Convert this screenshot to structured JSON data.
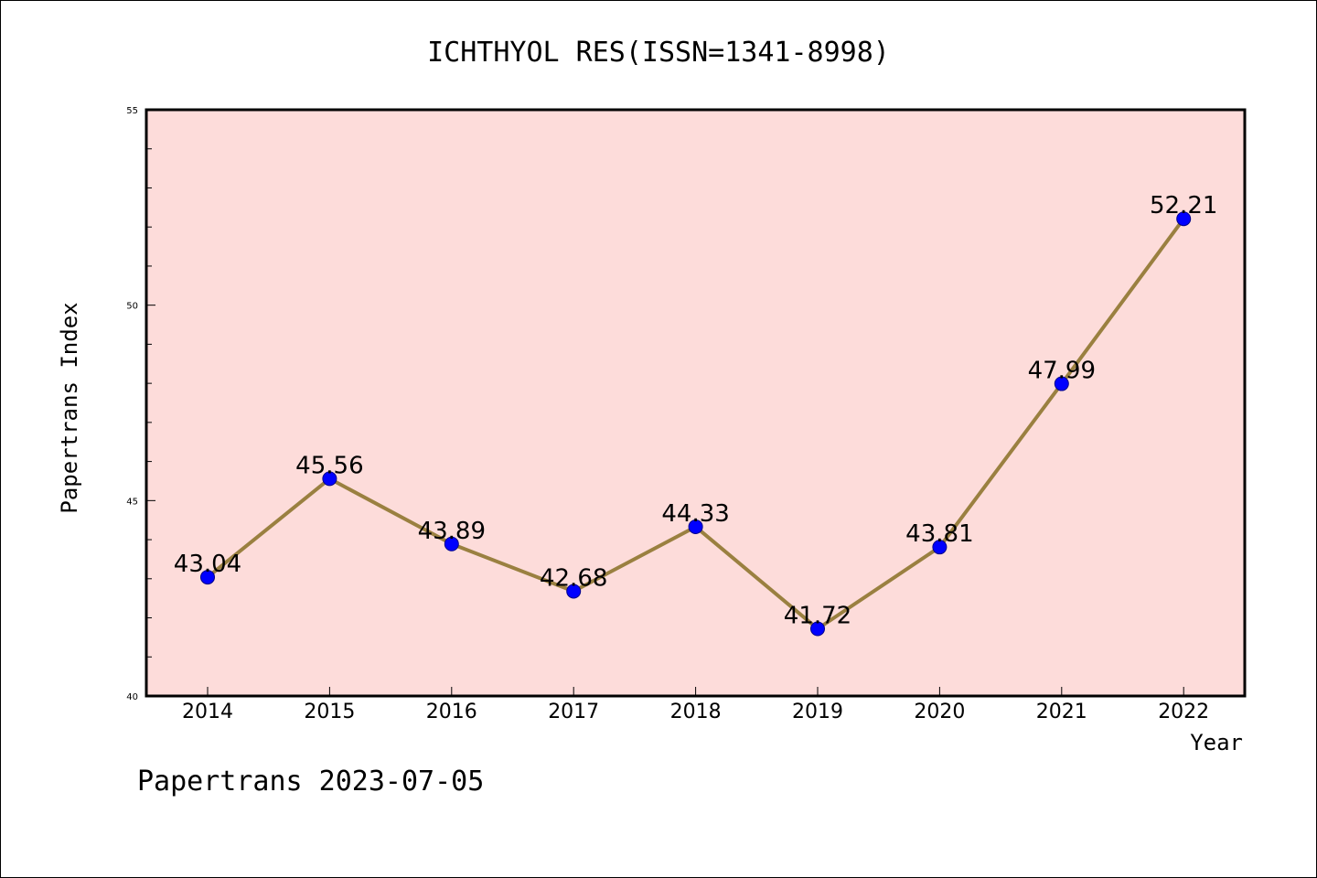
{
  "chart_data": {
    "type": "line",
    "title": "ICHTHYOL RES(ISSN=1341-8998)",
    "xlabel": "Year",
    "ylabel": "Papertrans Index",
    "categories": [
      "2014",
      "2015",
      "2016",
      "2017",
      "2018",
      "2019",
      "2020",
      "2021",
      "2022"
    ],
    "series": [
      {
        "values": [
          43.04,
          45.56,
          43.89,
          42.68,
          44.33,
          41.72,
          43.81,
          47.99,
          52.21
        ],
        "labels": [
          "43.04",
          "45.56",
          "43.89",
          "42.68",
          "44.33",
          "41.72",
          "43.81",
          "47.99",
          "52.21"
        ]
      }
    ],
    "ylim": [
      40,
      55
    ],
    "yticks": [
      "40",
      "45",
      "50",
      "55"
    ],
    "y_minor_step": 1,
    "grid": false,
    "legend": "none",
    "footer": "Papertrans 2023-07-05",
    "colors": {
      "plot_background": "#fddcda",
      "line": "#9a8040",
      "marker": "#0000ff",
      "marker_edge": "#00008b"
    }
  }
}
